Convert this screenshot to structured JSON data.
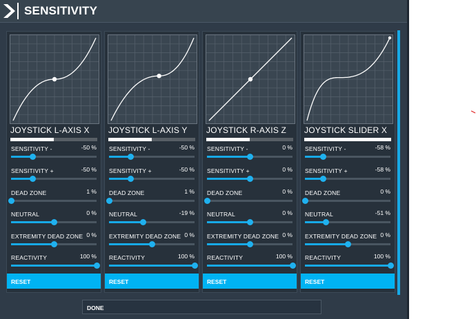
{
  "title": "SENSITIVITY",
  "colors": {
    "accent": "#00b3f3",
    "background": "#2f3b48",
    "panel": "#27313b"
  },
  "icons": {
    "logo": "chevron-logo-icon"
  },
  "panels": [
    {
      "axis": "JOYSTICK L-AXIS X",
      "curve": "s-curve",
      "axis_fill": 0.5,
      "rows": [
        {
          "label": "SENSITIVITY -",
          "value": "-50 %",
          "level": 0.25
        },
        {
          "label": "SENSITIVITY +",
          "value": "-50 %",
          "level": 0.25
        },
        {
          "label": "DEAD ZONE",
          "value": "1 %",
          "level": 0.0
        },
        {
          "label": "NEUTRAL",
          "value": "0 %",
          "level": 0.5
        },
        {
          "label": "EXTREMITY DEAD ZONE",
          "value": "0 %",
          "level": 0.5
        },
        {
          "label": "REACTIVITY",
          "value": "100 %",
          "level": 1.0
        }
      ],
      "reset_label": "RESET"
    },
    {
      "axis": "JOYSTICK L-AXIS Y",
      "curve": "s-curve-shifted",
      "axis_fill": 0.5,
      "rows": [
        {
          "label": "SENSITIVITY -",
          "value": "-50 %",
          "level": 0.25
        },
        {
          "label": "SENSITIVITY +",
          "value": "-50 %",
          "level": 0.25
        },
        {
          "label": "DEAD ZONE",
          "value": "1 %",
          "level": 0.0
        },
        {
          "label": "NEUTRAL",
          "value": "-19 %",
          "level": 0.4
        },
        {
          "label": "EXTREMITY DEAD ZONE",
          "value": "0 %",
          "level": 0.5
        },
        {
          "label": "REACTIVITY",
          "value": "100 %",
          "level": 1.0
        }
      ],
      "reset_label": "RESET"
    },
    {
      "axis": "JOYSTICK R-AXIS Z",
      "curve": "linear",
      "axis_fill": 0.5,
      "rows": [
        {
          "label": "SENSITIVITY -",
          "value": "0 %",
          "level": 0.5
        },
        {
          "label": "SENSITIVITY +",
          "value": "0 %",
          "level": 0.5
        },
        {
          "label": "DEAD ZONE",
          "value": "0 %",
          "level": 0.0
        },
        {
          "label": "NEUTRAL",
          "value": "0 %",
          "level": 0.5
        },
        {
          "label": "EXTREMITY DEAD ZONE",
          "value": "0 %",
          "level": 0.5
        },
        {
          "label": "REACTIVITY",
          "value": "100 %",
          "level": 1.0
        }
      ],
      "reset_label": "RESET"
    },
    {
      "axis": "JOYSTICK SLIDER X",
      "curve": "s-curve-low",
      "axis_fill": 1.0,
      "rows": [
        {
          "label": "SENSITIVITY -",
          "value": "-58 %",
          "level": 0.21
        },
        {
          "label": "SENSITIVITY +",
          "value": "-58 %",
          "level": 0.21
        },
        {
          "label": "DEAD ZONE",
          "value": "0 %",
          "level": 0.0
        },
        {
          "label": "NEUTRAL",
          "value": "-51 %",
          "level": 0.245
        },
        {
          "label": "EXTREMITY DEAD ZONE",
          "value": "0 %",
          "level": 0.5
        },
        {
          "label": "REACTIVITY",
          "value": "100 %",
          "level": 1.0
        }
      ],
      "reset_label": "RESET"
    }
  ],
  "done_label": "DONE"
}
